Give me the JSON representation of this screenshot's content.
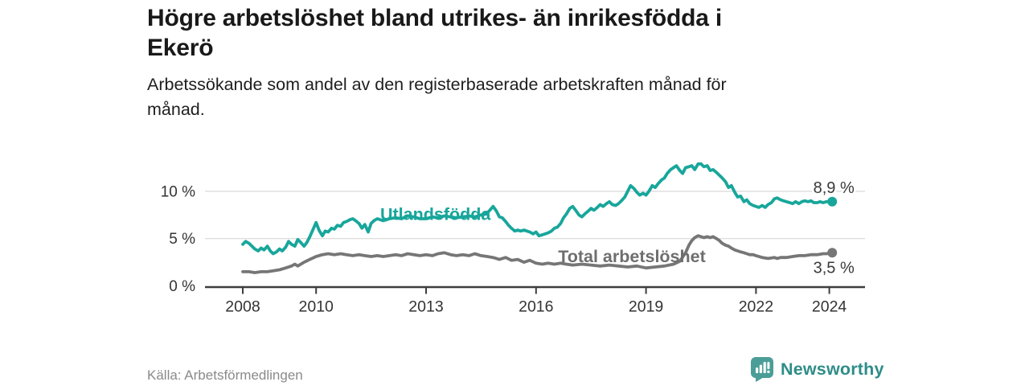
{
  "header": {
    "title": "Högre arbetslöshet bland utrikes- än inrikesfödda i\nEkerö",
    "subtitle": "Arbetssökande som andel av den registerbaserade arbetskraften månad för\nmånad."
  },
  "footer": {
    "source": "Källa: Arbetsförmedlingen",
    "brand": "Newsworthy",
    "brand_color": "#2e8d88",
    "logo_color": "#4a9e97"
  },
  "chart_data": {
    "type": "line",
    "title": "Högre arbetslöshet bland utrikes- än inrikesfödda i Ekerö",
    "subtitle": "Arbetssökande som andel av den registerbaserade arbetskraften månad för månad.",
    "source": "Källa: Arbetsförmedlingen",
    "unit": "%",
    "grid": true,
    "legend_position": "inline-labels",
    "axis_color": "#3d3d3d",
    "grid_color": "#d8d8d8",
    "tick_label_color": "#333333",
    "value_label_color": "#3a3a3a",
    "x_axis": {
      "ticks": [
        2008,
        2010,
        2013,
        2016,
        2019,
        2022,
        2024
      ],
      "range": [
        2007,
        2025
      ]
    },
    "y_axis": {
      "range": [
        0,
        13.6
      ],
      "ticks": [
        {
          "value": 0,
          "label": "0 %"
        },
        {
          "value": 5,
          "label": "5 %"
        },
        {
          "value": 10,
          "label": "10 %"
        }
      ]
    },
    "series": [
      {
        "name": "Utlandsfödda",
        "color": "#18a69b",
        "end_label": "8,9 %",
        "end_value": 8.9,
        "end_label_placement": "above",
        "label_x": 2011.75,
        "label_y": 7.55,
        "points": [
          [
            2008.0,
            4.4
          ],
          [
            2008.08,
            4.7
          ],
          [
            2008.17,
            4.5
          ],
          [
            2008.25,
            4.2
          ],
          [
            2008.33,
            3.9
          ],
          [
            2008.42,
            3.7
          ],
          [
            2008.5,
            4.0
          ],
          [
            2008.58,
            3.8
          ],
          [
            2008.67,
            4.2
          ],
          [
            2008.75,
            3.7
          ],
          [
            2008.83,
            3.4
          ],
          [
            2008.92,
            3.6
          ],
          [
            2009.0,
            3.9
          ],
          [
            2009.08,
            3.7
          ],
          [
            2009.17,
            4.1
          ],
          [
            2009.25,
            4.7
          ],
          [
            2009.33,
            4.4
          ],
          [
            2009.42,
            4.2
          ],
          [
            2009.5,
            4.9
          ],
          [
            2009.58,
            4.6
          ],
          [
            2009.67,
            4.2
          ],
          [
            2009.75,
            4.6
          ],
          [
            2009.83,
            5.2
          ],
          [
            2009.92,
            6.0
          ],
          [
            2010.0,
            6.7
          ],
          [
            2010.08,
            5.9
          ],
          [
            2010.17,
            5.3
          ],
          [
            2010.25,
            5.8
          ],
          [
            2010.33,
            5.7
          ],
          [
            2010.42,
            6.1
          ],
          [
            2010.5,
            6.0
          ],
          [
            2010.58,
            6.4
          ],
          [
            2010.67,
            6.3
          ],
          [
            2010.75,
            6.7
          ],
          [
            2010.83,
            6.8
          ],
          [
            2010.92,
            7.0
          ],
          [
            2011.0,
            7.1
          ],
          [
            2011.08,
            6.9
          ],
          [
            2011.17,
            6.6
          ],
          [
            2011.25,
            6.1
          ],
          [
            2011.33,
            6.5
          ],
          [
            2011.42,
            5.7
          ],
          [
            2011.5,
            6.6
          ],
          [
            2011.58,
            6.9
          ],
          [
            2011.67,
            7.1
          ],
          [
            2011.75,
            7.0
          ],
          [
            2011.83,
            6.9
          ],
          [
            2011.92,
            7.0
          ],
          [
            2012.0,
            7.1
          ],
          [
            2012.17,
            7.2
          ],
          [
            2012.33,
            7.1
          ],
          [
            2012.5,
            7.4
          ],
          [
            2012.67,
            7.3
          ],
          [
            2012.83,
            7.1
          ],
          [
            2013.0,
            7.1
          ],
          [
            2013.17,
            7.3
          ],
          [
            2013.33,
            7.2
          ],
          [
            2013.5,
            7.4
          ],
          [
            2013.67,
            7.3
          ],
          [
            2013.83,
            7.2
          ],
          [
            2014.0,
            7.3
          ],
          [
            2014.17,
            7.4
          ],
          [
            2014.33,
            7.3
          ],
          [
            2014.5,
            7.5
          ],
          [
            2014.67,
            7.7
          ],
          [
            2014.83,
            8.4
          ],
          [
            2014.92,
            7.9
          ],
          [
            2015.0,
            7.3
          ],
          [
            2015.08,
            7.2
          ],
          [
            2015.17,
            6.8
          ],
          [
            2015.25,
            6.4
          ],
          [
            2015.33,
            6.1
          ],
          [
            2015.42,
            5.8
          ],
          [
            2015.5,
            5.9
          ],
          [
            2015.58,
            5.8
          ],
          [
            2015.67,
            5.9
          ],
          [
            2015.75,
            5.8
          ],
          [
            2015.83,
            5.7
          ],
          [
            2015.92,
            5.5
          ],
          [
            2016.0,
            5.7
          ],
          [
            2016.08,
            5.3
          ],
          [
            2016.17,
            5.4
          ],
          [
            2016.25,
            5.5
          ],
          [
            2016.33,
            5.6
          ],
          [
            2016.42,
            5.8
          ],
          [
            2016.5,
            6.1
          ],
          [
            2016.58,
            6.2
          ],
          [
            2016.67,
            6.6
          ],
          [
            2016.75,
            7.2
          ],
          [
            2016.83,
            7.6
          ],
          [
            2016.92,
            8.2
          ],
          [
            2017.0,
            8.4
          ],
          [
            2017.08,
            8.0
          ],
          [
            2017.17,
            7.5
          ],
          [
            2017.25,
            7.3
          ],
          [
            2017.33,
            7.6
          ],
          [
            2017.42,
            7.9
          ],
          [
            2017.5,
            8.2
          ],
          [
            2017.58,
            8.0
          ],
          [
            2017.67,
            8.3
          ],
          [
            2017.75,
            8.6
          ],
          [
            2017.83,
            8.4
          ],
          [
            2017.92,
            8.7
          ],
          [
            2018.0,
            8.9
          ],
          [
            2018.08,
            8.6
          ],
          [
            2018.17,
            8.5
          ],
          [
            2018.25,
            8.7
          ],
          [
            2018.33,
            9.0
          ],
          [
            2018.42,
            9.4
          ],
          [
            2018.5,
            10.0
          ],
          [
            2018.58,
            10.6
          ],
          [
            2018.67,
            10.3
          ],
          [
            2018.75,
            9.9
          ],
          [
            2018.83,
            9.6
          ],
          [
            2018.92,
            9.8
          ],
          [
            2019.0,
            9.6
          ],
          [
            2019.08,
            10.0
          ],
          [
            2019.17,
            10.6
          ],
          [
            2019.25,
            10.4
          ],
          [
            2019.33,
            10.8
          ],
          [
            2019.42,
            11.2
          ],
          [
            2019.5,
            11.4
          ],
          [
            2019.58,
            11.9
          ],
          [
            2019.67,
            12.3
          ],
          [
            2019.75,
            12.5
          ],
          [
            2019.83,
            12.7
          ],
          [
            2019.92,
            12.2
          ],
          [
            2020.0,
            11.9
          ],
          [
            2020.08,
            12.5
          ],
          [
            2020.17,
            12.6
          ],
          [
            2020.25,
            12.7
          ],
          [
            2020.33,
            12.3
          ],
          [
            2020.42,
            12.9
          ],
          [
            2020.5,
            12.9
          ],
          [
            2020.58,
            12.6
          ],
          [
            2020.67,
            12.7
          ],
          [
            2020.75,
            12.2
          ],
          [
            2020.83,
            12.3
          ],
          [
            2020.92,
            12.0
          ],
          [
            2021.0,
            11.7
          ],
          [
            2021.08,
            11.4
          ],
          [
            2021.17,
            11.0
          ],
          [
            2021.25,
            10.4
          ],
          [
            2021.33,
            10.6
          ],
          [
            2021.42,
            9.9
          ],
          [
            2021.5,
            9.4
          ],
          [
            2021.58,
            9.5
          ],
          [
            2021.67,
            8.9
          ],
          [
            2021.75,
            9.1
          ],
          [
            2021.83,
            8.7
          ],
          [
            2021.92,
            8.5
          ],
          [
            2022.0,
            8.4
          ],
          [
            2022.08,
            8.3
          ],
          [
            2022.17,
            8.5
          ],
          [
            2022.25,
            8.3
          ],
          [
            2022.33,
            8.6
          ],
          [
            2022.42,
            8.8
          ],
          [
            2022.5,
            9.2
          ],
          [
            2022.58,
            9.3
          ],
          [
            2022.67,
            9.1
          ],
          [
            2022.75,
            9.0
          ],
          [
            2022.83,
            8.9
          ],
          [
            2022.92,
            8.8
          ],
          [
            2023.0,
            8.7
          ],
          [
            2023.08,
            8.9
          ],
          [
            2023.17,
            8.7
          ],
          [
            2023.25,
            8.9
          ],
          [
            2023.33,
            9.0
          ],
          [
            2023.42,
            8.9
          ],
          [
            2023.5,
            9.0
          ],
          [
            2023.58,
            8.8
          ],
          [
            2023.67,
            8.8
          ],
          [
            2023.75,
            8.9
          ],
          [
            2023.83,
            8.8
          ],
          [
            2023.92,
            8.9
          ],
          [
            2024.08,
            8.9
          ]
        ]
      },
      {
        "name": "Total arbetslöshet",
        "color": "#767676",
        "label_color": "#6e6e6e",
        "end_label": "3,5 %",
        "end_value": 3.5,
        "end_label_placement": "below",
        "label_x": 2016.6,
        "label_y": 3.1,
        "points": [
          [
            2008.0,
            1.5
          ],
          [
            2008.17,
            1.5
          ],
          [
            2008.33,
            1.4
          ],
          [
            2008.5,
            1.5
          ],
          [
            2008.67,
            1.5
          ],
          [
            2008.83,
            1.6
          ],
          [
            2009.0,
            1.7
          ],
          [
            2009.17,
            1.9
          ],
          [
            2009.33,
            2.1
          ],
          [
            2009.42,
            2.3
          ],
          [
            2009.5,
            2.1
          ],
          [
            2009.67,
            2.5
          ],
          [
            2009.83,
            2.8
          ],
          [
            2010.0,
            3.1
          ],
          [
            2010.17,
            3.3
          ],
          [
            2010.33,
            3.4
          ],
          [
            2010.5,
            3.3
          ],
          [
            2010.67,
            3.4
          ],
          [
            2010.83,
            3.3
          ],
          [
            2011.0,
            3.2
          ],
          [
            2011.17,
            3.3
          ],
          [
            2011.33,
            3.2
          ],
          [
            2011.5,
            3.1
          ],
          [
            2011.67,
            3.2
          ],
          [
            2011.83,
            3.1
          ],
          [
            2012.0,
            3.2
          ],
          [
            2012.17,
            3.3
          ],
          [
            2012.33,
            3.2
          ],
          [
            2012.5,
            3.4
          ],
          [
            2012.67,
            3.3
          ],
          [
            2012.83,
            3.2
          ],
          [
            2013.0,
            3.3
          ],
          [
            2013.17,
            3.2
          ],
          [
            2013.33,
            3.4
          ],
          [
            2013.5,
            3.5
          ],
          [
            2013.67,
            3.3
          ],
          [
            2013.83,
            3.2
          ],
          [
            2014.0,
            3.3
          ],
          [
            2014.17,
            3.2
          ],
          [
            2014.33,
            3.4
          ],
          [
            2014.5,
            3.2
          ],
          [
            2014.67,
            3.1
          ],
          [
            2014.83,
            3.0
          ],
          [
            2015.0,
            2.8
          ],
          [
            2015.17,
            3.0
          ],
          [
            2015.33,
            2.7
          ],
          [
            2015.5,
            2.8
          ],
          [
            2015.67,
            2.5
          ],
          [
            2015.83,
            2.7
          ],
          [
            2016.0,
            2.4
          ],
          [
            2016.17,
            2.3
          ],
          [
            2016.33,
            2.4
          ],
          [
            2016.5,
            2.3
          ],
          [
            2016.67,
            2.4
          ],
          [
            2016.83,
            2.3
          ],
          [
            2017.0,
            2.2
          ],
          [
            2017.25,
            2.3
          ],
          [
            2017.5,
            2.2
          ],
          [
            2017.75,
            2.1
          ],
          [
            2018.0,
            2.2
          ],
          [
            2018.25,
            2.1
          ],
          [
            2018.5,
            2.0
          ],
          [
            2018.75,
            2.1
          ],
          [
            2019.0,
            1.9
          ],
          [
            2019.25,
            2.0
          ],
          [
            2019.5,
            2.1
          ],
          [
            2019.75,
            2.3
          ],
          [
            2019.92,
            2.6
          ],
          [
            2020.08,
            3.5
          ],
          [
            2020.17,
            4.3
          ],
          [
            2020.25,
            4.8
          ],
          [
            2020.33,
            5.1
          ],
          [
            2020.42,
            5.3
          ],
          [
            2020.5,
            5.2
          ],
          [
            2020.58,
            5.1
          ],
          [
            2020.67,
            5.2
          ],
          [
            2020.75,
            5.1
          ],
          [
            2020.83,
            5.2
          ],
          [
            2020.92,
            5.0
          ],
          [
            2021.0,
            4.8
          ],
          [
            2021.08,
            4.5
          ],
          [
            2021.17,
            4.3
          ],
          [
            2021.25,
            4.2
          ],
          [
            2021.33,
            4.0
          ],
          [
            2021.42,
            3.8
          ],
          [
            2021.5,
            3.7
          ],
          [
            2021.58,
            3.6
          ],
          [
            2021.67,
            3.5
          ],
          [
            2021.75,
            3.4
          ],
          [
            2021.83,
            3.3
          ],
          [
            2021.92,
            3.3
          ],
          [
            2022.0,
            3.2
          ],
          [
            2022.17,
            3.0
          ],
          [
            2022.33,
            2.9
          ],
          [
            2022.5,
            3.0
          ],
          [
            2022.58,
            2.9
          ],
          [
            2022.67,
            3.0
          ],
          [
            2022.83,
            3.0
          ],
          [
            2023.0,
            3.1
          ],
          [
            2023.17,
            3.2
          ],
          [
            2023.33,
            3.2
          ],
          [
            2023.5,
            3.3
          ],
          [
            2023.67,
            3.3
          ],
          [
            2023.83,
            3.4
          ],
          [
            2023.92,
            3.4
          ],
          [
            2024.08,
            3.5
          ]
        ]
      }
    ]
  }
}
